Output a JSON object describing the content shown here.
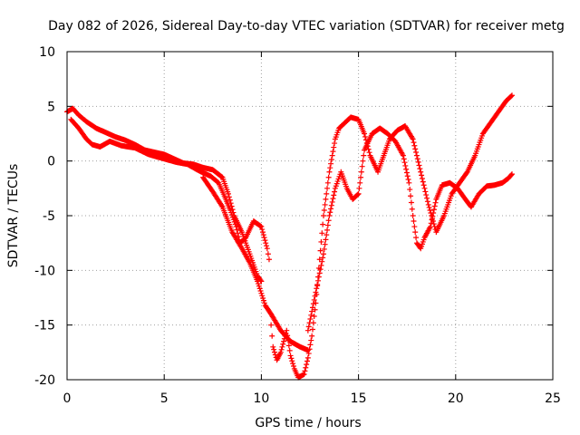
{
  "chart_data": {
    "type": "scatter",
    "title": "Day 082 of 2026, Sidereal Day-to-day VTEC variation (SDTVAR) for receiver metg",
    "xlabel": "GPS time / hours",
    "ylabel": "SDTVAR / TECUs",
    "xlim": [
      0,
      25
    ],
    "ylim": [
      -20,
      10
    ],
    "x_ticks": [
      0,
      5,
      10,
      15,
      20,
      25
    ],
    "y_ticks": [
      -20,
      -15,
      -10,
      -5,
      0,
      5,
      10
    ],
    "x_tick_labels": [
      "0",
      "5",
      "10",
      "15",
      "20",
      "25"
    ],
    "y_tick_labels": [
      "-20",
      "-15",
      "-10",
      "-5",
      "0",
      "5",
      "10"
    ],
    "grid": true,
    "marker": "plus",
    "color": "#ff0000",
    "series": [
      {
        "points": [
          [
            0.0,
            4.5
          ],
          [
            0.3,
            4.8
          ],
          [
            0.6,
            4.2
          ],
          [
            1.0,
            3.6
          ],
          [
            1.5,
            3.0
          ],
          [
            2.0,
            2.6
          ],
          [
            2.5,
            2.2
          ],
          [
            3.0,
            1.9
          ],
          [
            3.5,
            1.5
          ],
          [
            4.0,
            1.0
          ],
          [
            4.5,
            0.8
          ],
          [
            5.0,
            0.6
          ],
          [
            5.5,
            0.2
          ],
          [
            6.0,
            -0.2
          ],
          [
            6.5,
            -0.3
          ],
          [
            7.0,
            -0.6
          ],
          [
            7.5,
            -0.8
          ],
          [
            8.0,
            -1.5
          ],
          [
            8.3,
            -3.0
          ],
          [
            8.6,
            -5.0
          ],
          [
            9.0,
            -6.5
          ],
          [
            9.4,
            -8.5
          ],
          [
            9.8,
            -10.5
          ],
          [
            10.0,
            -11.0
          ]
        ]
      },
      {
        "points": [
          [
            0.2,
            3.8
          ],
          [
            0.6,
            3.0
          ],
          [
            1.0,
            2.0
          ],
          [
            1.3,
            1.5
          ],
          [
            1.7,
            1.3
          ],
          [
            2.2,
            1.8
          ],
          [
            2.8,
            1.4
          ],
          [
            3.5,
            1.2
          ],
          [
            4.2,
            0.6
          ],
          [
            5.0,
            0.2
          ],
          [
            5.6,
            -0.1
          ],
          [
            6.2,
            -0.3
          ],
          [
            6.8,
            -0.9
          ],
          [
            7.4,
            -1.4
          ],
          [
            7.8,
            -2.0
          ],
          [
            8.1,
            -3.2
          ],
          [
            8.4,
            -4.5
          ],
          [
            8.7,
            -6.0
          ],
          [
            8.9,
            -7.5
          ],
          [
            9.2,
            -7.0
          ],
          [
            9.6,
            -5.5
          ],
          [
            10.0,
            -6.0
          ],
          [
            10.3,
            -8.0
          ],
          [
            10.4,
            -9.0
          ]
        ]
      },
      {
        "points": [
          [
            7.0,
            -1.5
          ],
          [
            7.5,
            -2.8
          ],
          [
            8.0,
            -4.2
          ],
          [
            8.5,
            -6.5
          ],
          [
            9.0,
            -8.0
          ],
          [
            9.4,
            -9.3
          ],
          [
            9.8,
            -11.0
          ],
          [
            10.2,
            -13.2
          ],
          [
            10.5,
            -14.0
          ],
          [
            11.0,
            -15.5
          ],
          [
            11.5,
            -16.5
          ],
          [
            12.0,
            -17.0
          ],
          [
            12.4,
            -17.3
          ]
        ]
      },
      {
        "points": [
          [
            10.5,
            -15.0
          ],
          [
            10.6,
            -17.0
          ],
          [
            10.8,
            -18.2
          ],
          [
            11.0,
            -17.5
          ],
          [
            11.3,
            -15.5
          ],
          [
            11.5,
            -17.8
          ],
          [
            11.7,
            -19.0
          ],
          [
            11.9,
            -19.8
          ],
          [
            12.2,
            -19.5
          ],
          [
            12.4,
            -18.0
          ],
          [
            12.6,
            -16.0
          ],
          [
            12.8,
            -13.0
          ],
          [
            13.0,
            -9.0
          ],
          [
            13.2,
            -5.0
          ],
          [
            13.5,
            -1.0
          ],
          [
            13.8,
            2.0
          ],
          [
            14.0,
            3.0
          ],
          [
            14.3,
            3.5
          ],
          [
            14.6,
            4.0
          ],
          [
            15.0,
            3.8
          ],
          [
            15.3,
            2.5
          ],
          [
            15.6,
            0.5
          ],
          [
            16.0,
            -1.0
          ],
          [
            16.3,
            0.5
          ],
          [
            16.6,
            2.0
          ],
          [
            17.0,
            2.8
          ],
          [
            17.4,
            3.2
          ],
          [
            17.8,
            2.0
          ],
          [
            18.2,
            -1.0
          ],
          [
            18.6,
            -4.0
          ],
          [
            19.0,
            -6.5
          ],
          [
            19.4,
            -5.0
          ],
          [
            19.8,
            -3.0
          ],
          [
            20.2,
            -2.0
          ],
          [
            20.6,
            -1.0
          ],
          [
            21.0,
            0.5
          ],
          [
            21.4,
            2.5
          ],
          [
            21.8,
            3.5
          ],
          [
            22.2,
            4.5
          ],
          [
            22.6,
            5.5
          ],
          [
            22.9,
            6.0
          ]
        ]
      },
      {
        "points": [
          [
            12.4,
            -15.5
          ],
          [
            12.8,
            -12.0
          ],
          [
            13.2,
            -8.5
          ],
          [
            13.5,
            -5.0
          ],
          [
            13.8,
            -2.5
          ],
          [
            14.1,
            -1.0
          ],
          [
            14.4,
            -2.5
          ],
          [
            14.7,
            -3.5
          ],
          [
            15.0,
            -3.0
          ],
          [
            15.3,
            1.0
          ],
          [
            15.7,
            2.5
          ],
          [
            16.1,
            3.0
          ],
          [
            16.5,
            2.5
          ],
          [
            16.9,
            1.8
          ],
          [
            17.3,
            0.5
          ],
          [
            17.6,
            -2.0
          ],
          [
            17.8,
            -5.0
          ],
          [
            18.0,
            -7.5
          ],
          [
            18.2,
            -8.0
          ],
          [
            18.4,
            -7.0
          ],
          [
            18.7,
            -6.0
          ],
          [
            19.0,
            -3.5
          ],
          [
            19.3,
            -2.2
          ],
          [
            19.7,
            -2.0
          ],
          [
            20.1,
            -2.5
          ],
          [
            20.5,
            -3.5
          ],
          [
            20.8,
            -4.2
          ],
          [
            21.2,
            -3.0
          ],
          [
            21.6,
            -2.3
          ],
          [
            22.0,
            -2.2
          ],
          [
            22.4,
            -2.0
          ],
          [
            22.7,
            -1.6
          ],
          [
            22.9,
            -1.2
          ]
        ]
      }
    ]
  }
}
